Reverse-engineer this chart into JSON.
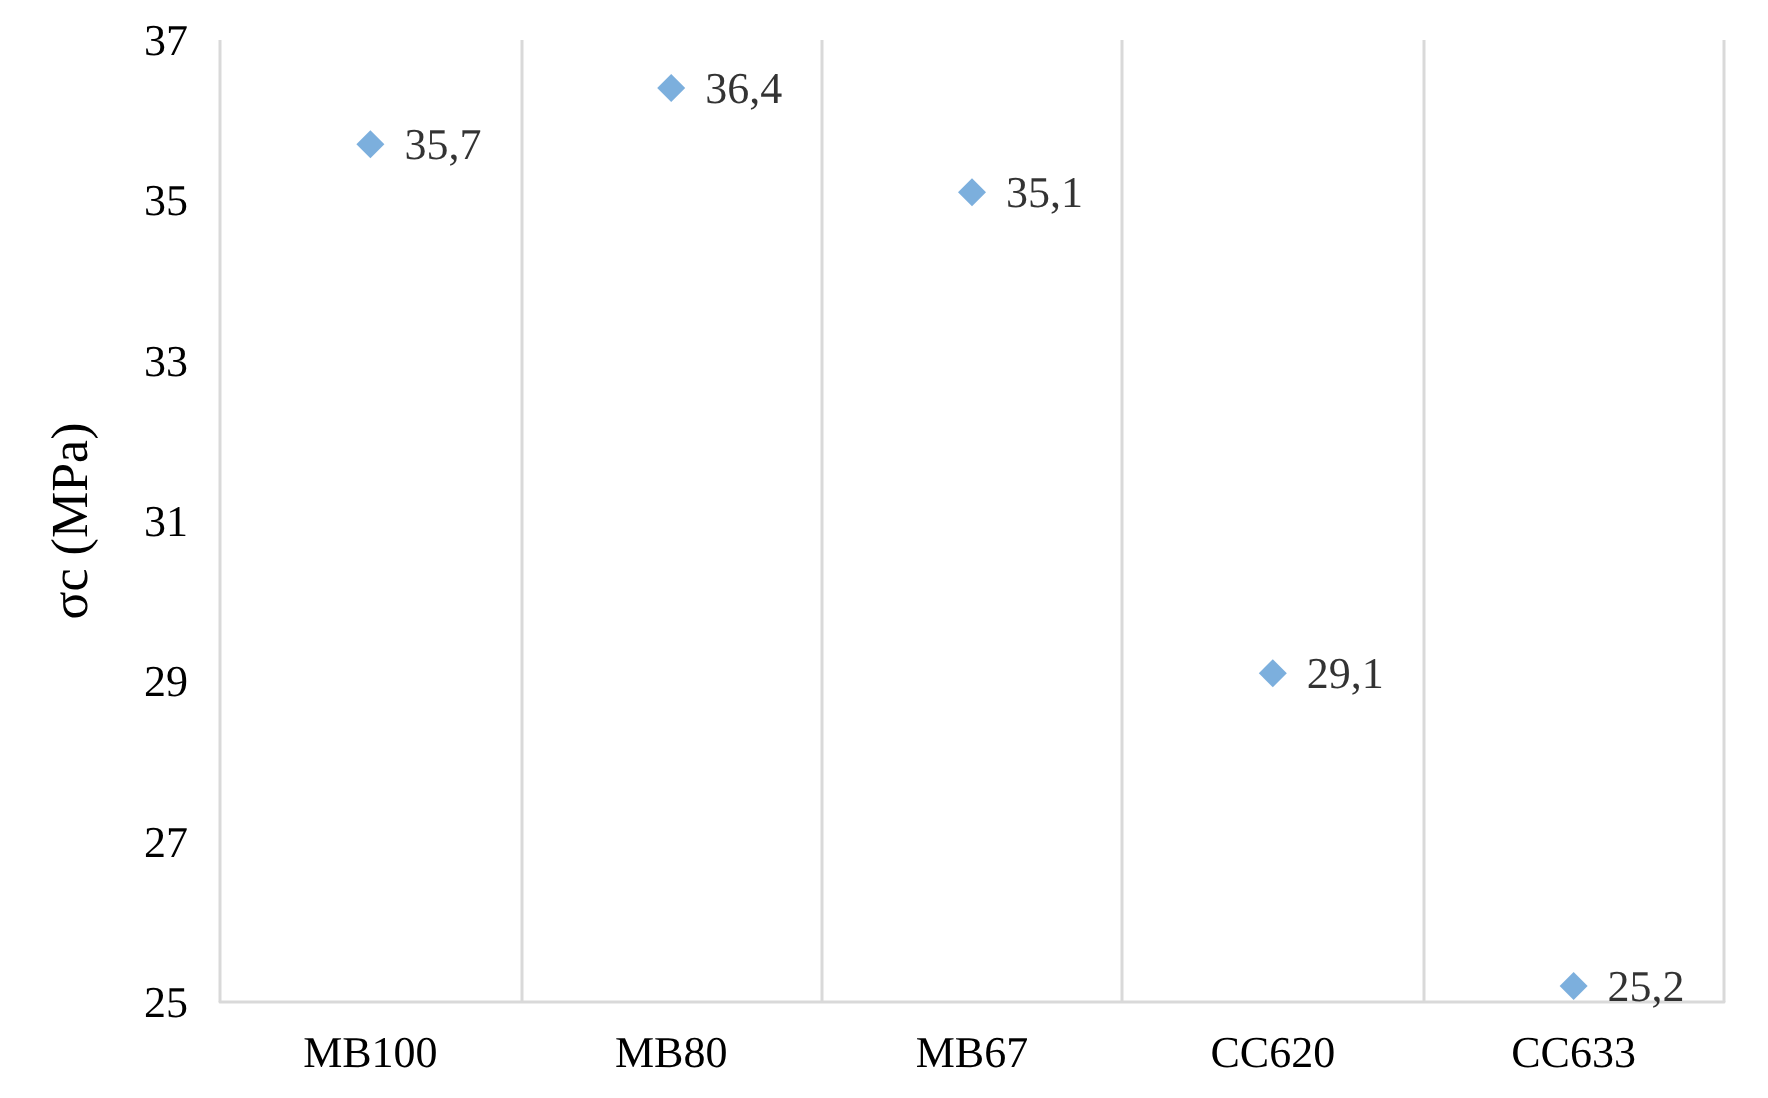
{
  "chart_data": {
    "type": "scatter",
    "ylabel": "σc (MPa)",
    "categories": [
      "MB100",
      "MB80",
      "MB67",
      "CC620",
      "CC633"
    ],
    "series": [
      {
        "color": "#5b9bd5",
        "values": [
          35.7,
          36.4,
          35.1,
          29.1,
          25.2
        ],
        "value_labels": [
          "35,7",
          "36,4",
          "35,1",
          "29,1",
          "25,2"
        ]
      }
    ],
    "ylim": [
      25,
      37
    ],
    "yticks": [
      25,
      27,
      29,
      31,
      33,
      35,
      37
    ],
    "grid": "x",
    "marker": "diamond"
  }
}
